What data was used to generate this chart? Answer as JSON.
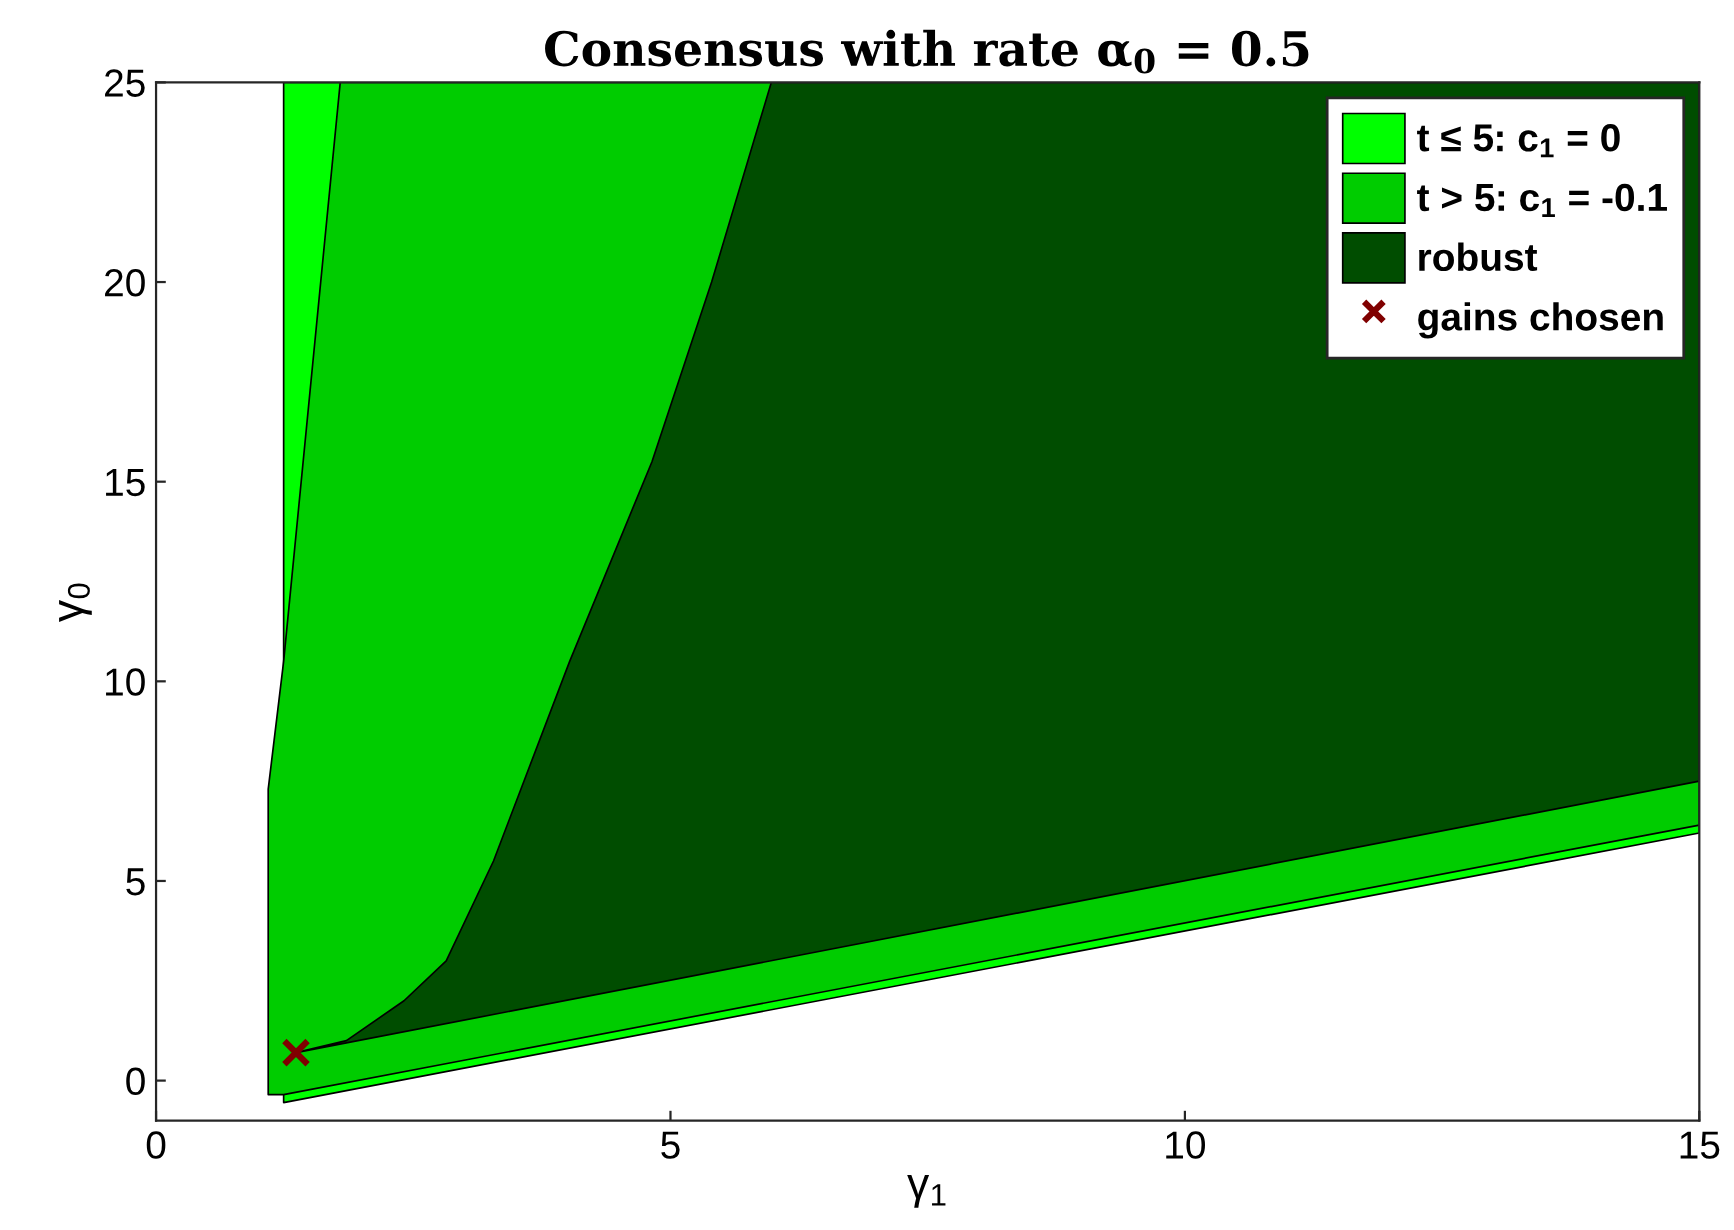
{
  "chart_data": {
    "type": "area",
    "title": "Consensus with rate α$_{0}$ = 0.5",
    "xlabel": "γ$_{1}$",
    "ylabel": "γ$_{0}$",
    "xlim": [
      0,
      15
    ],
    "xticks": [
      0,
      5,
      10,
      15
    ],
    "ylim": [
      -1,
      25
    ],
    "yticks": [
      0,
      5,
      10,
      15,
      20,
      25
    ],
    "grid": false,
    "legend": "top right",
    "series": [
      {
        "name": "t ≤ 5: c$_{1}$ = 0",
        "color": "#00ff00",
        "x": [
          1.24,
          15,
          15,
          1.79,
          1.24
        ],
        "values": [
          -0.55,
          6.2,
          25,
          25,
          25
        ]
      },
      {
        "name": "t > 5: c$_{1}$ = -0.1",
        "color": "#00cc00",
        "x": [
          1.09,
          1.24,
          15,
          15,
          1.79,
          1.24,
          1.09
        ],
        "values": [
          -0.35,
          -0.35,
          6.4,
          25,
          25,
          10.5,
          7.3
        ]
      },
      {
        "name": "robust",
        "color": "#004d00",
        "x": [
          1.36,
          15,
          15,
          5.98,
          5.4,
          4.82,
          4.02,
          3.28,
          2.82,
          2.41,
          1.85
        ],
        "values": [
          0.7,
          7.5,
          25,
          25,
          20,
          15.5,
          10.5,
          5.5,
          3.0,
          2.0,
          1.0
        ]
      },
      {
        "name": "gains chosen",
        "type": "scatter",
        "marker": "cross",
        "color": "#800000",
        "x": [
          1.36
        ],
        "values": [
          0.7
        ]
      }
    ]
  }
}
